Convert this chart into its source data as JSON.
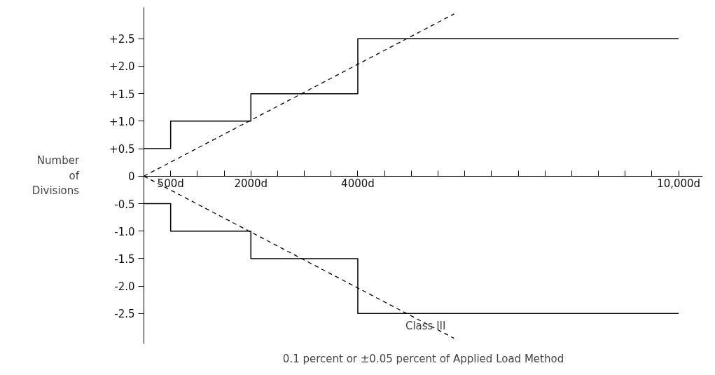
{
  "chart_data": {
    "type": "step",
    "ylabel": "Number of Divisions",
    "xlim": [
      0,
      10450
    ],
    "ylim": [
      -3.05,
      3.07
    ],
    "xticks": [
      {
        "value": 0,
        "label": null
      },
      {
        "value": 500,
        "label": "500d"
      },
      {
        "value": 1000,
        "label": null
      },
      {
        "value": 1500,
        "label": null
      },
      {
        "value": 2000,
        "label": "2000d"
      },
      {
        "value": 2500,
        "label": null
      },
      {
        "value": 3000,
        "label": null
      },
      {
        "value": 3500,
        "label": null
      },
      {
        "value": 4000,
        "label": "4000d"
      },
      {
        "value": 4500,
        "label": null
      },
      {
        "value": 5000,
        "label": null
      },
      {
        "value": 5500,
        "label": null
      },
      {
        "value": 6000,
        "label": null
      },
      {
        "value": 6500,
        "label": null
      },
      {
        "value": 7000,
        "label": null
      },
      {
        "value": 7500,
        "label": null
      },
      {
        "value": 8000,
        "label": null
      },
      {
        "value": 8500,
        "label": null
      },
      {
        "value": 9000,
        "label": null
      },
      {
        "value": 9500,
        "label": null
      },
      {
        "value": 10000,
        "label": "10,000d"
      }
    ],
    "yticks": [
      {
        "value": 2.5,
        "label": "+2.5"
      },
      {
        "value": 2.0,
        "label": "+2.0"
      },
      {
        "value": 1.5,
        "label": "+1.5"
      },
      {
        "value": 1.0,
        "label": "+1.0"
      },
      {
        "value": 0.5,
        "label": "+0.5"
      },
      0,
      -0.5,
      {
        "value": -1.0,
        "label": "-1.0"
      },
      -1.5,
      {
        "value": -2.0,
        "label": "-2.0"
      },
      -2.5
    ],
    "grid": false,
    "series": [
      {
        "color": "#000000",
        "x": [
          0,
          500,
          2000,
          4000,
          10000
        ],
        "values": [
          0.5,
          1.0,
          1.5,
          2.5,
          2.5
        ]
      },
      {
        "color": "#000000",
        "x": [
          0,
          500,
          2000,
          4000,
          10000
        ],
        "values": [
          -0.5,
          -1.0,
          -1.5,
          -2.5,
          -2.5
        ]
      },
      {
        "type": "line",
        "color": "#000000",
        "line_style": "dashed",
        "x": [
          0,
          5800
        ],
        "values": [
          0,
          2.95
        ]
      },
      {
        "type": "line",
        "color": "#000000",
        "line_style": "dashed",
        "x": [
          0,
          5800
        ],
        "values": [
          0,
          -2.95
        ]
      }
    ],
    "annotations": [
      {
        "text": "Class III",
        "x": 5800,
        "y": -2.95
      },
      "0.1 percent or ±0.05 percent of Applied Load Method"
    ]
  }
}
